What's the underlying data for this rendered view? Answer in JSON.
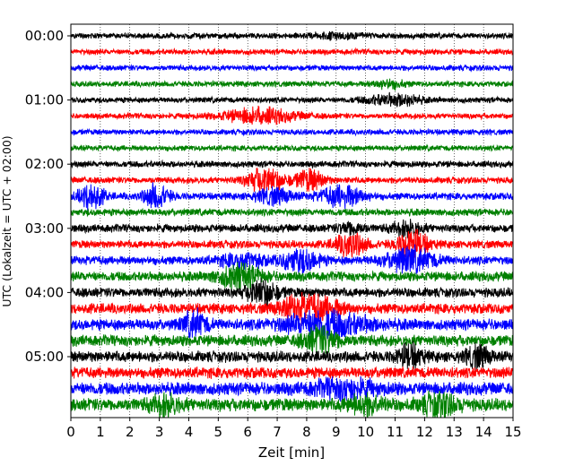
{
  "chart_data": {
    "type": "line",
    "subtype": "helicorder",
    "title": "",
    "xlabel": "Zeit  [min]",
    "ylabel": "UTC (Lokalzeit = UTC + 02:00)",
    "xlim": [
      0,
      15
    ],
    "x_ticks": [
      "0",
      "1",
      "2",
      "3",
      "4",
      "5",
      "6",
      "7",
      "8",
      "9",
      "10",
      "11",
      "12",
      "13",
      "14",
      "15"
    ],
    "y_ticks": [
      "00:00",
      "01:00",
      "02:00",
      "03:00",
      "04:00",
      "05:00"
    ],
    "grid": "vertical dotted lines at every minute",
    "trace_duration_min": 15,
    "trace_colors_cycle": [
      "#000000",
      "#ff0000",
      "#0000ff",
      "#008000"
    ],
    "traces": [
      {
        "start": "00:00",
        "color": "#000000",
        "noise": 3.5,
        "events": [
          [
            9.0,
            0.8,
            3
          ]
        ]
      },
      {
        "start": "00:15",
        "color": "#ff0000",
        "noise": 3.5,
        "events": []
      },
      {
        "start": "00:30",
        "color": "#0000ff",
        "noise": 3.5,
        "events": []
      },
      {
        "start": "00:45",
        "color": "#008000",
        "noise": 3.5,
        "events": [
          [
            10.8,
            0.5,
            5
          ]
        ]
      },
      {
        "start": "01:00",
        "color": "#000000",
        "noise": 3.5,
        "events": [
          [
            10.7,
            0.8,
            5
          ],
          [
            11.4,
            0.5,
            4
          ]
        ]
      },
      {
        "start": "01:15",
        "color": "#ff0000",
        "noise": 3.5,
        "events": [
          [
            6.4,
            1.2,
            9
          ]
        ]
      },
      {
        "start": "01:30",
        "color": "#0000ff",
        "noise": 3.5,
        "events": []
      },
      {
        "start": "01:45",
        "color": "#008000",
        "noise": 3.5,
        "events": []
      },
      {
        "start": "02:00",
        "color": "#000000",
        "noise": 4,
        "events": []
      },
      {
        "start": "02:15",
        "color": "#ff0000",
        "noise": 4,
        "events": [
          [
            6.6,
            0.6,
            15
          ],
          [
            8.1,
            0.5,
            12
          ]
        ]
      },
      {
        "start": "02:30",
        "color": "#0000ff",
        "noise": 4.5,
        "events": [
          [
            0.7,
            0.4,
            16
          ],
          [
            2.9,
            0.4,
            15
          ],
          [
            6.9,
            0.6,
            9
          ],
          [
            9.2,
            0.7,
            13
          ]
        ]
      },
      {
        "start": "02:45",
        "color": "#008000",
        "noise": 4.5,
        "events": []
      },
      {
        "start": "03:00",
        "color": "#000000",
        "noise": 5,
        "events": [
          [
            9.5,
            0.4,
            7
          ],
          [
            11.4,
            0.5,
            8
          ]
        ]
      },
      {
        "start": "03:15",
        "color": "#ff0000",
        "noise": 5,
        "events": [
          [
            9.5,
            0.5,
            14
          ],
          [
            11.6,
            0.5,
            16
          ]
        ]
      },
      {
        "start": "03:30",
        "color": "#0000ff",
        "noise": 5.5,
        "events": [
          [
            5.8,
            0.7,
            8
          ],
          [
            7.8,
            0.6,
            14
          ],
          [
            11.5,
            0.8,
            14
          ]
        ]
      },
      {
        "start": "03:45",
        "color": "#008000",
        "noise": 6,
        "events": [
          [
            5.7,
            0.7,
            14
          ]
        ]
      },
      {
        "start": "04:00",
        "color": "#000000",
        "noise": 6,
        "events": [
          [
            6.5,
            0.5,
            15
          ]
        ]
      },
      {
        "start": "04:15",
        "color": "#ff0000",
        "noise": 6.5,
        "events": [
          [
            7.6,
            0.6,
            10
          ],
          [
            8.5,
            0.7,
            12
          ]
        ]
      },
      {
        "start": "04:30",
        "color": "#0000ff",
        "noise": 7,
        "events": [
          [
            4.2,
            0.4,
            14
          ],
          [
            8.7,
            1.4,
            14
          ]
        ]
      },
      {
        "start": "04:45",
        "color": "#008000",
        "noise": 7,
        "events": [
          [
            8.5,
            0.6,
            14
          ]
        ]
      },
      {
        "start": "05:00",
        "color": "#000000",
        "noise": 7,
        "events": [
          [
            11.5,
            0.4,
            13
          ],
          [
            13.8,
            0.4,
            12
          ]
        ]
      },
      {
        "start": "05:15",
        "color": "#ff0000",
        "noise": 7,
        "events": []
      },
      {
        "start": "05:30",
        "color": "#0000ff",
        "noise": 8,
        "events": [
          [
            9.3,
            1.0,
            10
          ]
        ]
      },
      {
        "start": "05:45",
        "color": "#008000",
        "noise": 8,
        "events": [
          [
            3.2,
            0.5,
            10
          ],
          [
            10.0,
            0.6,
            10
          ],
          [
            12.5,
            0.6,
            12
          ]
        ]
      }
    ]
  }
}
